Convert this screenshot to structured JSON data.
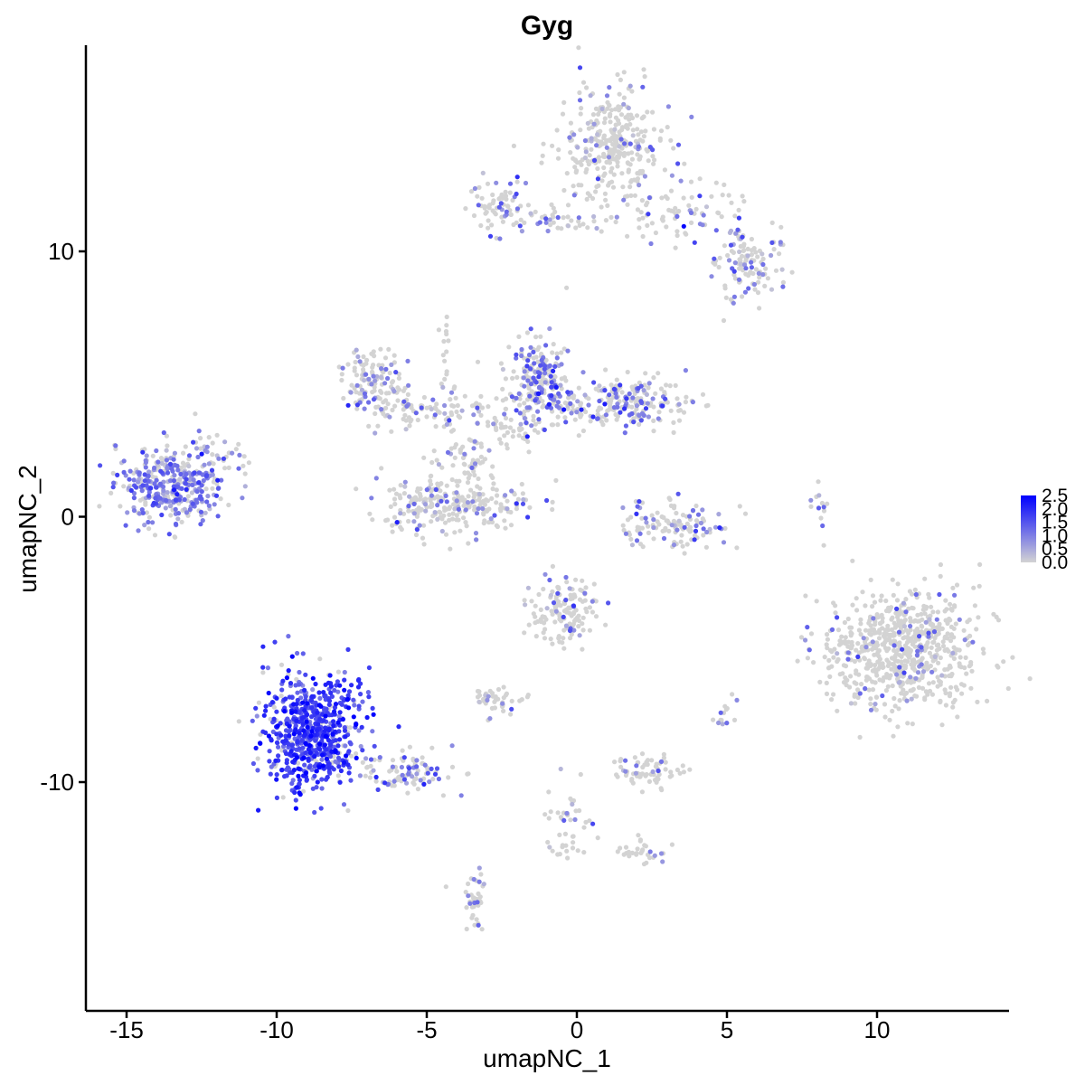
{
  "chart_data": {
    "type": "scatter",
    "title": "Gyg",
    "xlabel": "umapNC_1",
    "ylabel": "umapNC_2",
    "xlim": [
      -16.5,
      14.5
    ],
    "ylim": [
      -18.5,
      17.5
    ],
    "x_ticks": [
      -15,
      -10,
      -5,
      0,
      5,
      10
    ],
    "y_ticks": [
      -10,
      0,
      10
    ],
    "x_tick_labels": [
      "-15",
      "-10",
      "-5",
      "0",
      "5",
      "10"
    ],
    "y_tick_labels": [
      "-10",
      "0",
      "10"
    ],
    "grid": false,
    "legend": {
      "placement": "right",
      "type": "colorbar",
      "min": 0.0,
      "max": 2.5,
      "ticks": [
        2.5,
        2.0,
        1.5,
        1.0,
        0.5,
        0.0
      ],
      "tick_labels": [
        "2.5",
        "2.0",
        "1.5",
        "1.0",
        "0.5",
        "0.0"
      ],
      "low_color": "#d3d3d3",
      "high_color": "#0000ff"
    },
    "clusters": [
      {
        "center": [
          1.2,
          14.0
        ],
        "spread": [
          0.9,
          1.1
        ],
        "n": 320,
        "expr_frac": 0.15,
        "expr_mean": 0.8
      },
      {
        "center": [
          3.5,
          11.5
        ],
        "spread": [
          1.2,
          0.6
        ],
        "n": 80,
        "expr_frac": 0.18,
        "expr_mean": 0.9
      },
      {
        "center": [
          5.6,
          9.5
        ],
        "spread": [
          0.6,
          0.7
        ],
        "n": 120,
        "expr_frac": 0.25,
        "expr_mean": 1.0
      },
      {
        "center": [
          -2.5,
          11.7
        ],
        "spread": [
          0.5,
          0.5
        ],
        "n": 70,
        "expr_frac": 0.35,
        "expr_mean": 1.0
      },
      {
        "center": [
          -0.5,
          11.1
        ],
        "spread": [
          1.0,
          0.3
        ],
        "n": 40,
        "expr_frac": 0.3,
        "expr_mean": 1.0
      },
      {
        "center": [
          -13.5,
          1.2
        ],
        "spread": [
          0.9,
          0.7
        ],
        "n": 380,
        "expr_frac": 0.7,
        "expr_mean": 1.0
      },
      {
        "center": [
          -11.8,
          2.2
        ],
        "spread": [
          0.4,
          0.4
        ],
        "n": 25,
        "expr_frac": 0.3,
        "expr_mean": 0.8
      },
      {
        "center": [
          -6.8,
          5.2
        ],
        "spread": [
          0.5,
          0.6
        ],
        "n": 110,
        "expr_frac": 0.3,
        "expr_mean": 0.9
      },
      {
        "center": [
          -5.5,
          4.0
        ],
        "spread": [
          0.9,
          0.4
        ],
        "n": 80,
        "expr_frac": 0.2,
        "expr_mean": 0.8
      },
      {
        "center": [
          -4.3,
          0.5
        ],
        "spread": [
          1.1,
          0.6
        ],
        "n": 260,
        "expr_frac": 0.2,
        "expr_mean": 0.9
      },
      {
        "center": [
          -3.6,
          2.0
        ],
        "spread": [
          0.4,
          0.5
        ],
        "n": 40,
        "expr_frac": 0.1,
        "expr_mean": 0.8
      },
      {
        "center": [
          -1.3,
          5.2
        ],
        "spread": [
          0.5,
          0.8
        ],
        "n": 220,
        "expr_frac": 0.4,
        "expr_mean": 1.1
      },
      {
        "center": [
          1.5,
          4.3
        ],
        "spread": [
          1.1,
          0.5
        ],
        "n": 230,
        "expr_frac": 0.35,
        "expr_mean": 1.1
      },
      {
        "center": [
          -2.0,
          3.5
        ],
        "spread": [
          0.6,
          0.5
        ],
        "n": 50,
        "expr_frac": 0.15,
        "expr_mean": 0.8
      },
      {
        "center": [
          3.2,
          -0.3
        ],
        "spread": [
          0.9,
          0.5
        ],
        "n": 120,
        "expr_frac": 0.3,
        "expr_mean": 1.0
      },
      {
        "center": [
          10.8,
          -5.0
        ],
        "spread": [
          1.3,
          1.1
        ],
        "n": 700,
        "expr_frac": 0.08,
        "expr_mean": 0.9
      },
      {
        "center": [
          -8.8,
          -8.0
        ],
        "spread": [
          0.8,
          1.1
        ],
        "n": 650,
        "expr_frac": 0.88,
        "expr_mean": 1.7
      },
      {
        "center": [
          -5.7,
          -9.6
        ],
        "spread": [
          0.8,
          0.4
        ],
        "n": 100,
        "expr_frac": 0.35,
        "expr_mean": 1.0
      },
      {
        "center": [
          -0.5,
          -3.6
        ],
        "spread": [
          0.6,
          0.7
        ],
        "n": 140,
        "expr_frac": 0.18,
        "expr_mean": 0.9
      },
      {
        "center": [
          -2.6,
          -6.9
        ],
        "spread": [
          0.4,
          0.3
        ],
        "n": 45,
        "expr_frac": 0.15,
        "expr_mean": 0.8
      },
      {
        "center": [
          2.4,
          -9.6
        ],
        "spread": [
          0.6,
          0.3
        ],
        "n": 70,
        "expr_frac": 0.15,
        "expr_mean": 0.9
      },
      {
        "center": [
          -0.2,
          -11.4
        ],
        "spread": [
          0.4,
          0.8
        ],
        "n": 45,
        "expr_frac": 0.2,
        "expr_mean": 0.9
      },
      {
        "center": [
          2.1,
          -12.6
        ],
        "spread": [
          0.4,
          0.3
        ],
        "n": 30,
        "expr_frac": 0.3,
        "expr_mean": 0.9
      },
      {
        "center": [
          -3.4,
          -14.4
        ],
        "spread": [
          0.2,
          0.6
        ],
        "n": 40,
        "expr_frac": 0.2,
        "expr_mean": 0.9
      },
      {
        "center": [
          5.0,
          -7.4
        ],
        "spread": [
          0.2,
          0.3
        ],
        "n": 14,
        "expr_frac": 0.3,
        "expr_mean": 1.0
      },
      {
        "center": [
          8.1,
          0.3
        ],
        "spread": [
          0.15,
          0.5
        ],
        "n": 12,
        "expr_frac": 0.2,
        "expr_mean": 0.8
      },
      {
        "center": [
          -4.4,
          6.4
        ],
        "spread": [
          0.1,
          0.6
        ],
        "n": 12,
        "expr_frac": 0.1,
        "expr_mean": 0.8
      },
      {
        "center": [
          -1.7,
          0.5
        ],
        "spread": [
          0.5,
          0.4
        ],
        "n": 12,
        "expr_frac": 0.4,
        "expr_mean": 1.3
      },
      {
        "center": [
          -3.6,
          3.4
        ],
        "spread": [
          0.8,
          1.2
        ],
        "n": 40,
        "expr_frac": 0.15,
        "expr_mean": 0.8
      }
    ]
  }
}
